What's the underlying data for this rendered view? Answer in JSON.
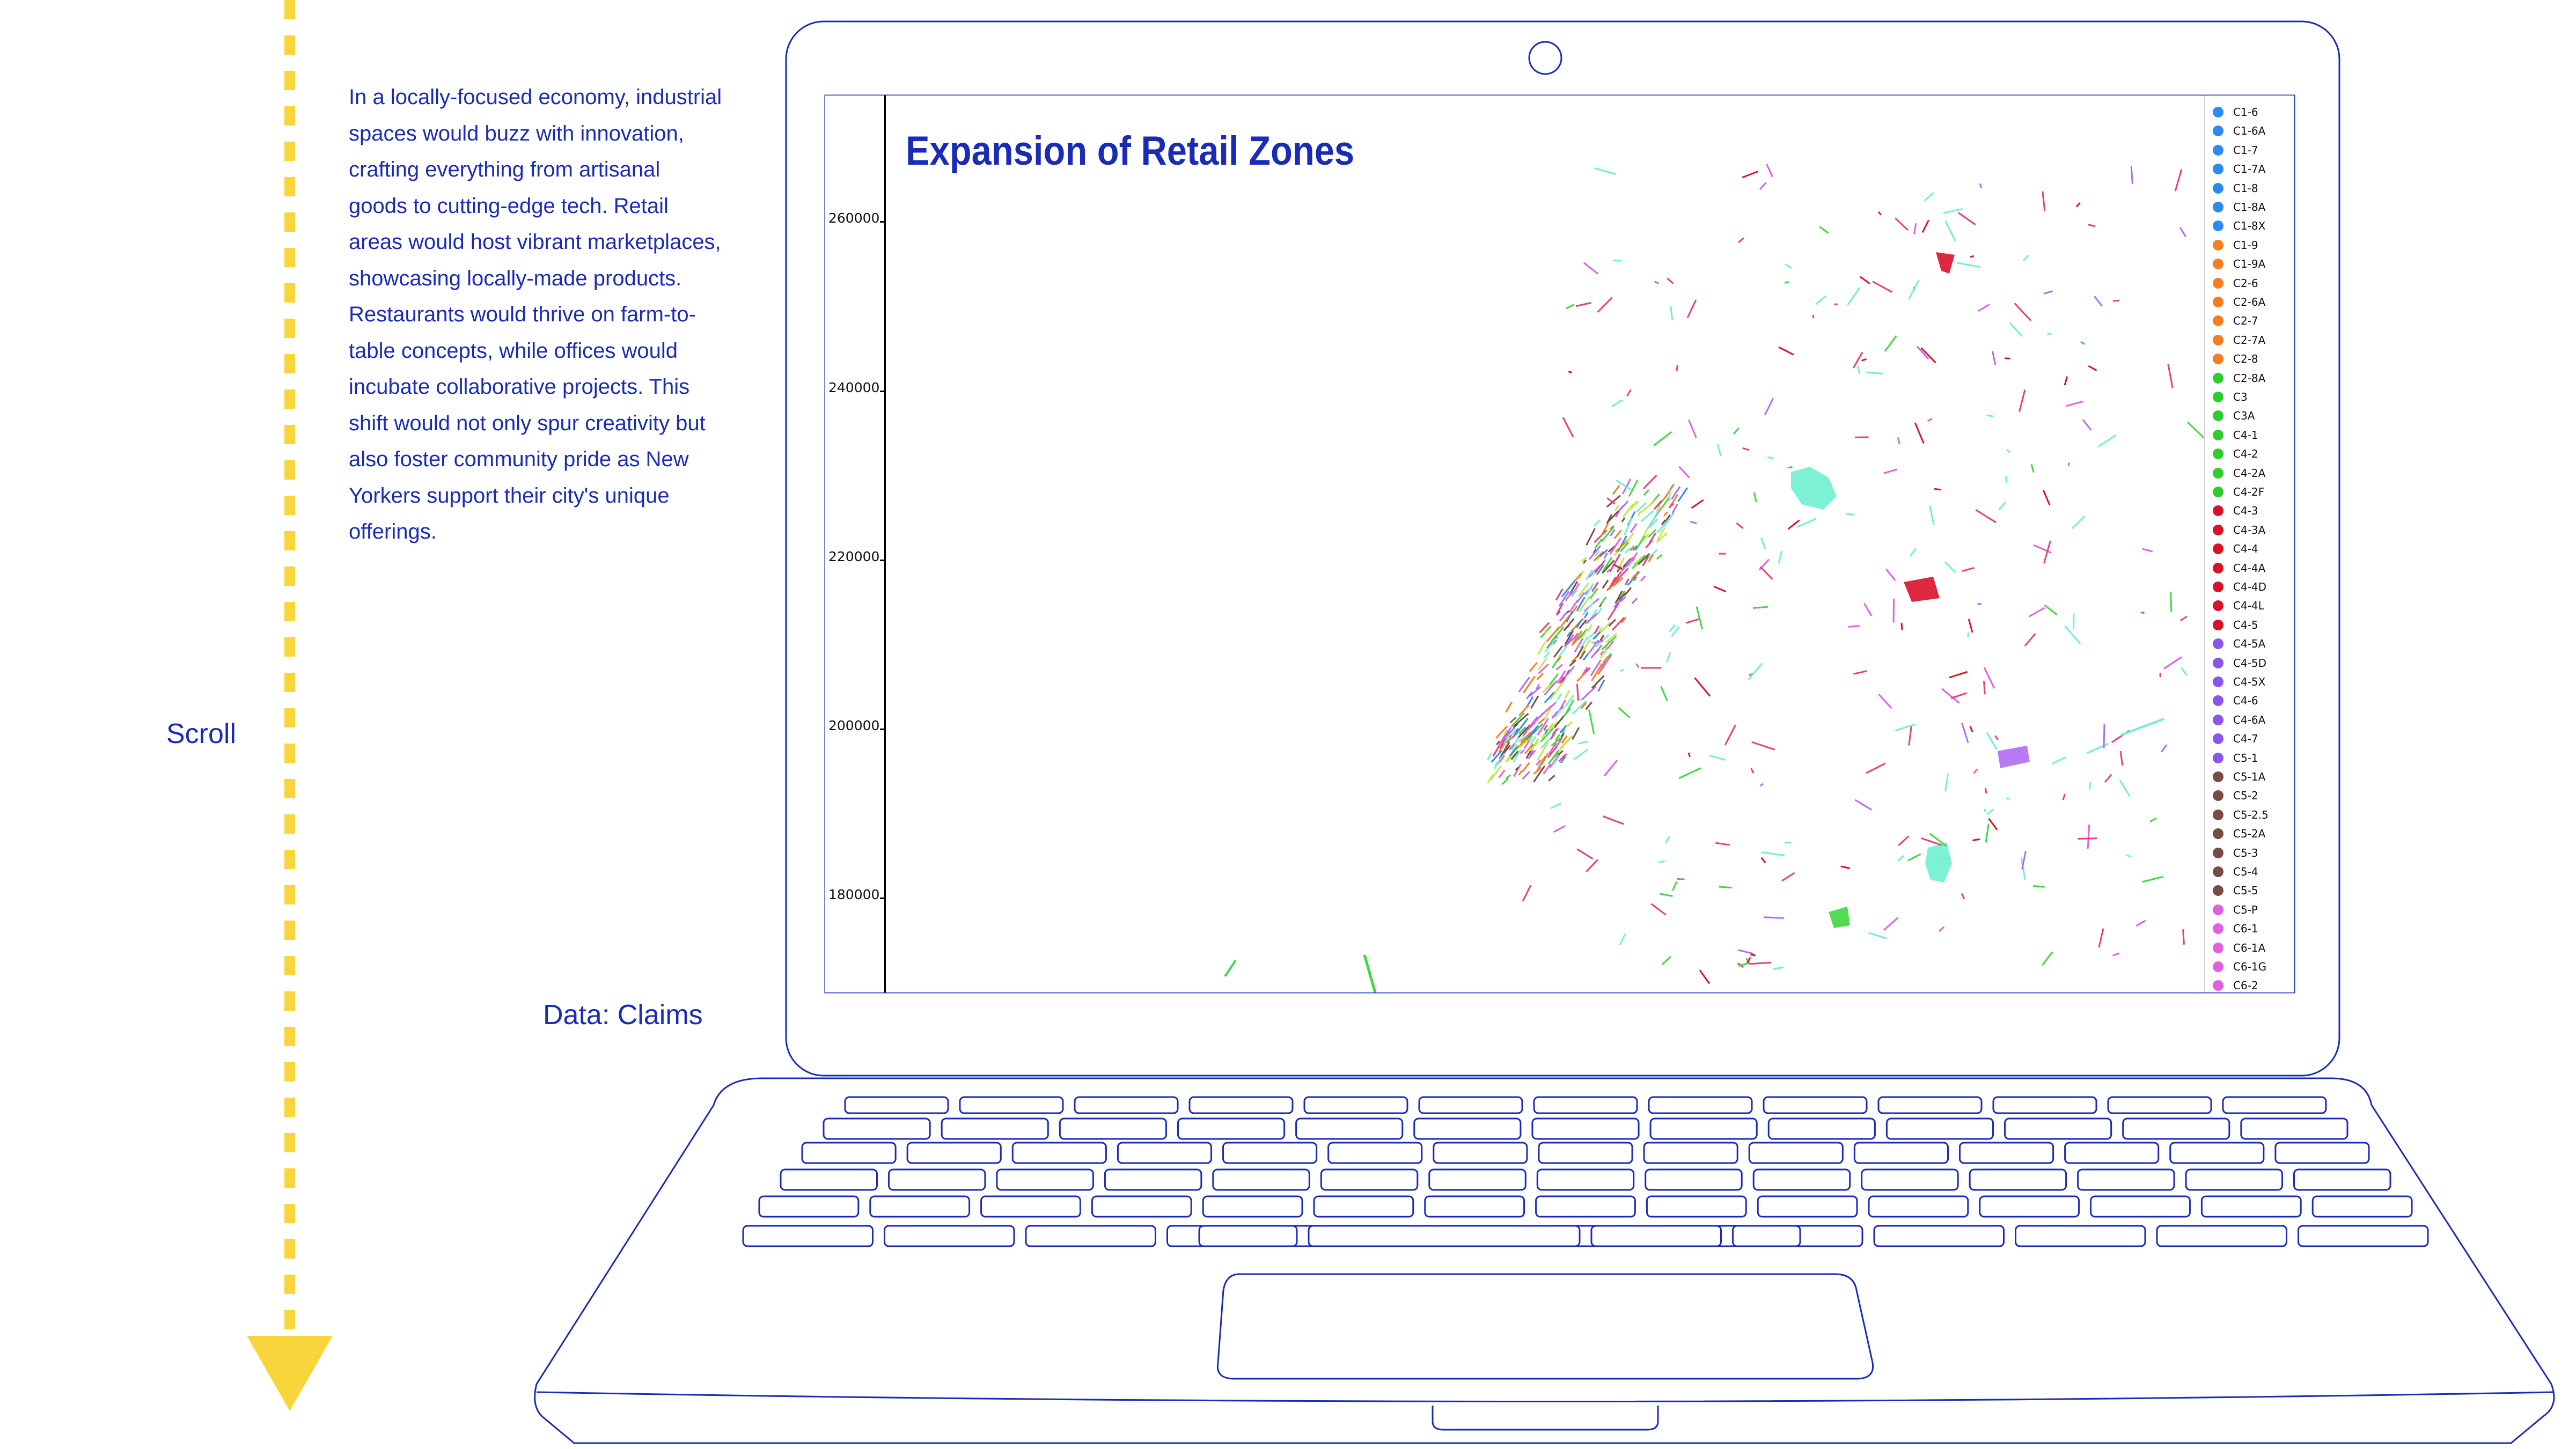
{
  "sidebar": {
    "scroll_label": "Scroll",
    "story_text": "In a locally-focused economy, industrial spaces would buzz with innovation, crafting everything from artisanal goods to cutting-edge tech. Retail areas would host vibrant marketplaces, showcasing locally-made products. Restaurants would thrive on farm-to-table concepts, while offices would incubate collaborative projects. This shift would not only spur creativity but also foster community pride as New Yorkers support their city's unique offerings.",
    "data_label": "Data: Claims"
  },
  "map": {
    "title": "Expansion of Retail Zones",
    "y_ticks": [
      "260000",
      "240000",
      "220000",
      "200000",
      "180000"
    ],
    "legend": [
      {
        "label": "C1-6",
        "color": "#2b8cf0"
      },
      {
        "label": "C1-6A",
        "color": "#2b8cf0"
      },
      {
        "label": "C1-7",
        "color": "#2b8cf0"
      },
      {
        "label": "C1-7A",
        "color": "#2b8cf0"
      },
      {
        "label": "C1-8",
        "color": "#2b8cf0"
      },
      {
        "label": "C1-8A",
        "color": "#2b8cf0"
      },
      {
        "label": "C1-8X",
        "color": "#2b8cf0"
      },
      {
        "label": "C1-9",
        "color": "#f57d22"
      },
      {
        "label": "C1-9A",
        "color": "#f57d22"
      },
      {
        "label": "C2-6",
        "color": "#f57d22"
      },
      {
        "label": "C2-6A",
        "color": "#f57d22"
      },
      {
        "label": "C2-7",
        "color": "#f57d22"
      },
      {
        "label": "C2-7A",
        "color": "#f57d22"
      },
      {
        "label": "C2-8",
        "color": "#f57d22"
      },
      {
        "label": "C2-8A",
        "color": "#2ecc2e"
      },
      {
        "label": "C3",
        "color": "#2ecc2e"
      },
      {
        "label": "C3A",
        "color": "#2ecc2e"
      },
      {
        "label": "C4-1",
        "color": "#2ecc2e"
      },
      {
        "label": "C4-2",
        "color": "#2ecc2e"
      },
      {
        "label": "C4-2A",
        "color": "#2ecc2e"
      },
      {
        "label": "C4-2F",
        "color": "#2ecc2e"
      },
      {
        "label": "C4-3",
        "color": "#d9122a"
      },
      {
        "label": "C4-3A",
        "color": "#d9122a"
      },
      {
        "label": "C4-4",
        "color": "#d9122a"
      },
      {
        "label": "C4-4A",
        "color": "#d9122a"
      },
      {
        "label": "C4-4D",
        "color": "#d9122a"
      },
      {
        "label": "C4-4L",
        "color": "#d9122a"
      },
      {
        "label": "C4-5",
        "color": "#d9122a"
      },
      {
        "label": "C4-5A",
        "color": "#8a55e8"
      },
      {
        "label": "C4-5D",
        "color": "#8a55e8"
      },
      {
        "label": "C4-5X",
        "color": "#8a55e8"
      },
      {
        "label": "C4-6",
        "color": "#8a55e8"
      },
      {
        "label": "C4-6A",
        "color": "#8a55e8"
      },
      {
        "label": "C4-7",
        "color": "#8a55e8"
      },
      {
        "label": "C5-1",
        "color": "#8a55e8"
      },
      {
        "label": "C5-1A",
        "color": "#7a4a44"
      },
      {
        "label": "C5-2",
        "color": "#7a4a44"
      },
      {
        "label": "C5-2.5",
        "color": "#7a4a44"
      },
      {
        "label": "C5-2A",
        "color": "#7a4a44"
      },
      {
        "label": "C5-3",
        "color": "#7a4a44"
      },
      {
        "label": "C5-4",
        "color": "#7a4a44"
      },
      {
        "label": "C5-5",
        "color": "#7a4a44"
      },
      {
        "label": "C5-P",
        "color": "#e060e0"
      },
      {
        "label": "C6-1",
        "color": "#e060e0"
      },
      {
        "label": "C6-1A",
        "color": "#e060e0"
      },
      {
        "label": "C6-1G",
        "color": "#e060e0"
      },
      {
        "label": "C6-2",
        "color": "#e060e0"
      }
    ],
    "zone_colors": {
      "aqua": "#6ff0cf",
      "red": "#d9122a",
      "pink": "#e83f78",
      "violet": "#b06cf0",
      "green": "#3fd83f",
      "lime": "#c0e84a",
      "orange": "#f57d22",
      "brown": "#7a4a44",
      "blue": "#2b8cf0",
      "magenta": "#e060e0"
    }
  },
  "icons": {
    "laptop": "laptop-outline-icon",
    "camera": "webcam-icon",
    "arrow": "arrow-down-icon"
  }
}
